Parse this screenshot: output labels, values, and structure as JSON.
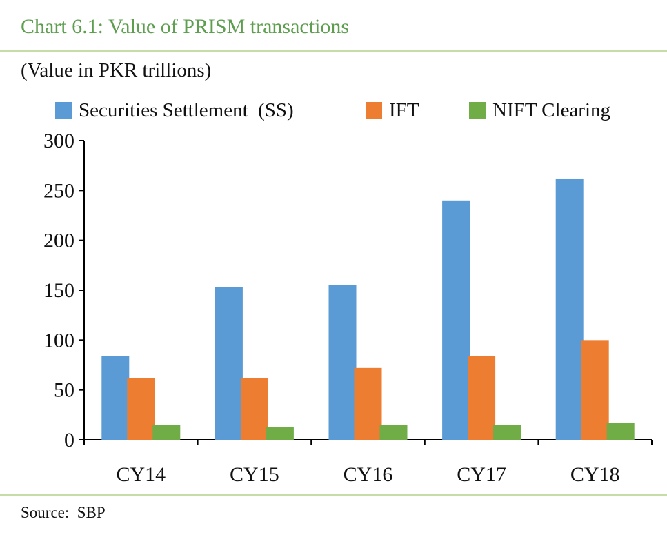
{
  "header": {
    "title": "Chart 6.1: Value of PRISM transactions",
    "subtitle": "(Value in PKR trillions)"
  },
  "footer": {
    "source": "Source:  SBP"
  },
  "colors": {
    "title": "#5d9e4f",
    "rule": "#c6dda8",
    "series": [
      "#5b9bd5",
      "#ed7d31",
      "#70ad47"
    ]
  },
  "chart_data": {
    "type": "bar",
    "categories": [
      "CY14",
      "CY15",
      "CY16",
      "CY17",
      "CY18"
    ],
    "series": [
      {
        "name": "Securities Settlement  (SS)",
        "values": [
          84,
          153,
          155,
          240,
          262
        ]
      },
      {
        "name": "IFT",
        "values": [
          62,
          62,
          72,
          84,
          100
        ]
      },
      {
        "name": "NIFT Clearing",
        "values": [
          15,
          13,
          15,
          15,
          17
        ]
      }
    ],
    "ylim": [
      0,
      300
    ],
    "yticks": [
      0,
      50,
      100,
      150,
      200,
      250,
      300
    ],
    "grid": false,
    "legend_position": "top"
  }
}
